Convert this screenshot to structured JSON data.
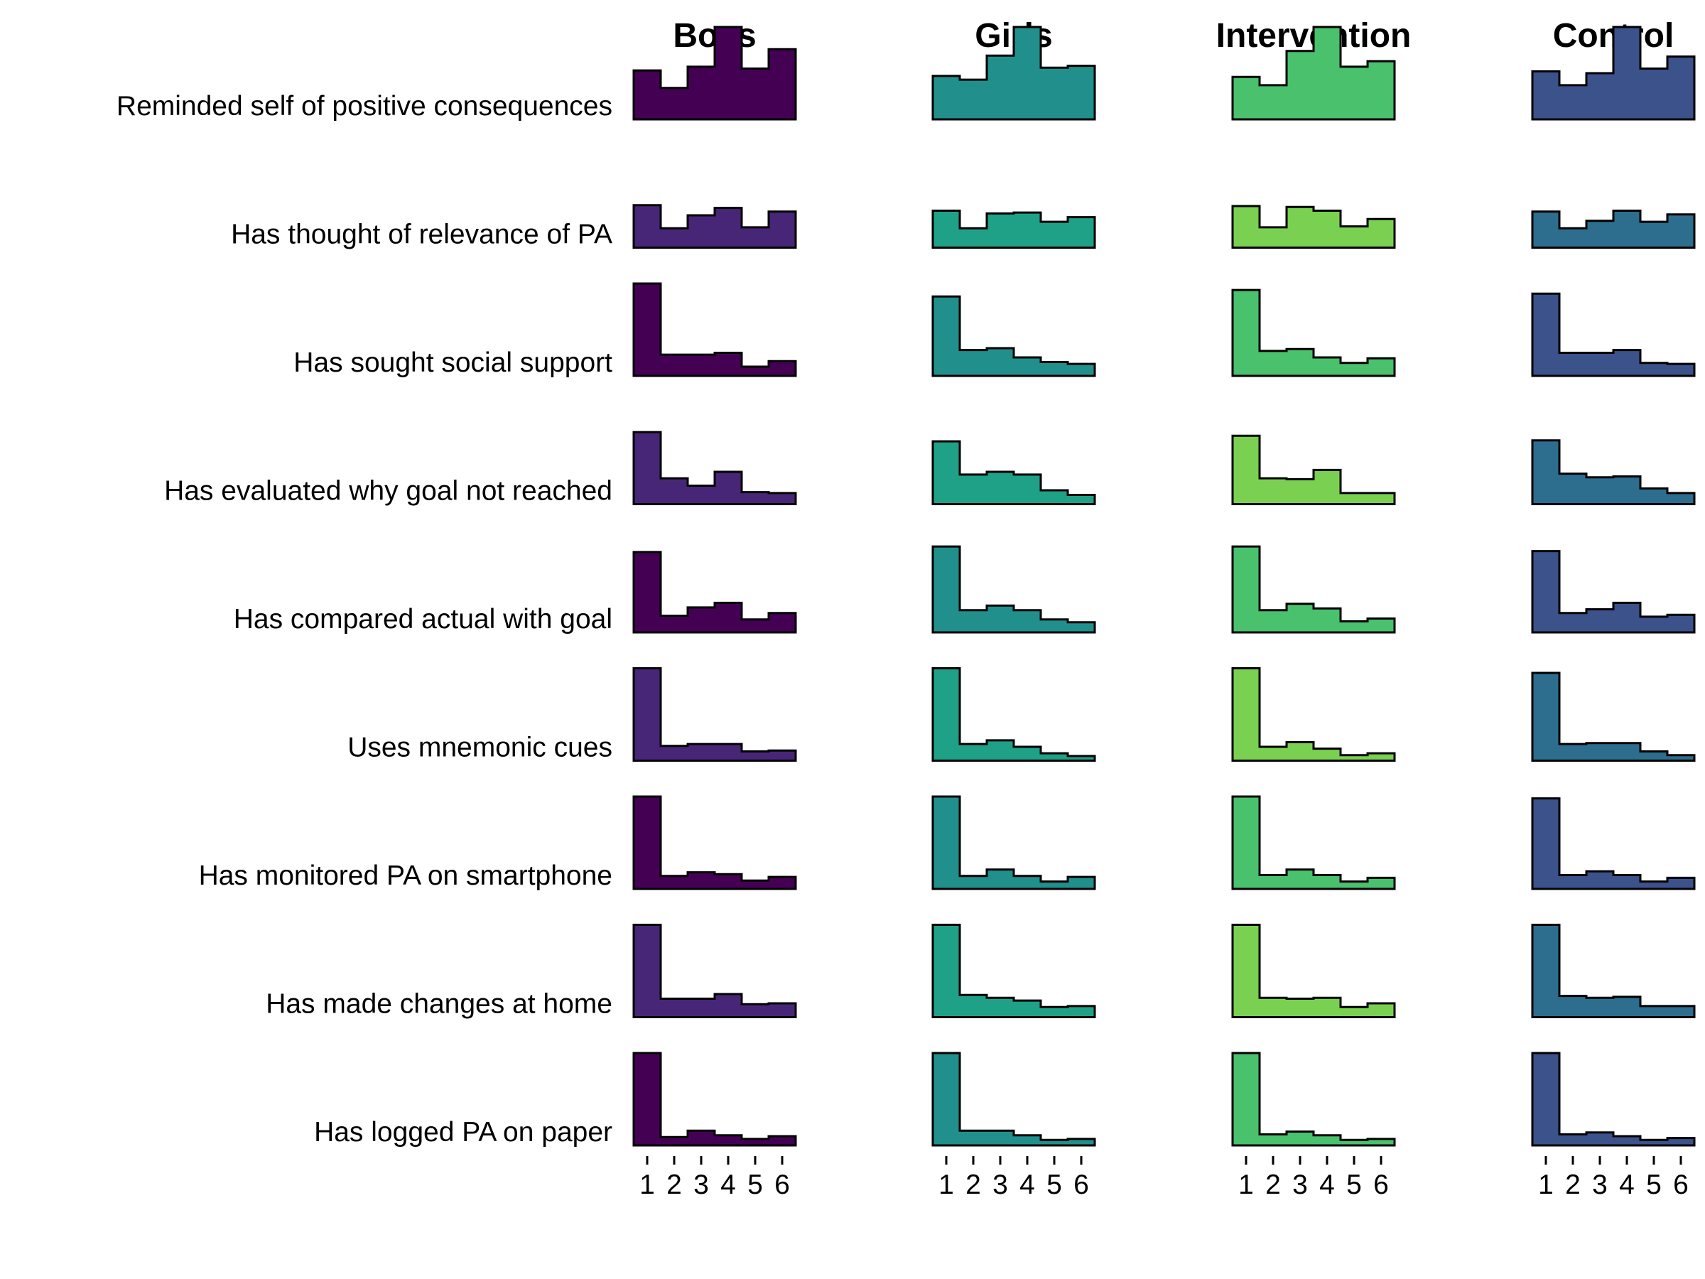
{
  "chart_data": {
    "type": "bar",
    "subtype": "ridgeline-histogram",
    "x_categories": [
      "1",
      "2",
      "3",
      "4",
      "5",
      "6"
    ],
    "columns": [
      {
        "title": "Boys",
        "color": "#440154"
      },
      {
        "title": "Girls",
        "color": "#21908C"
      },
      {
        "title": "Intervention",
        "color": "#4AC16D"
      },
      {
        "title": "Control",
        "color": "#3B528B"
      }
    ],
    "row_colors": [
      [
        "#440154",
        "#21908C",
        "#4AC16D",
        "#3B528B"
      ],
      [
        "#482677",
        "#1FA187",
        "#7AD151",
        "#2D6E8E"
      ],
      [
        "#440154",
        "#21908C",
        "#4AC16D",
        "#3B528B"
      ],
      [
        "#482677",
        "#1FA187",
        "#7AD151",
        "#2D6E8E"
      ],
      [
        "#440154",
        "#21908C",
        "#4AC16D",
        "#3B528B"
      ],
      [
        "#482677",
        "#1FA187",
        "#7AD151",
        "#2D6E8E"
      ],
      [
        "#440154",
        "#21908C",
        "#4AC16D",
        "#3B528B"
      ],
      [
        "#482677",
        "#1FA187",
        "#7AD151",
        "#2D6E8E"
      ],
      [
        "#440154",
        "#21908C",
        "#4AC16D",
        "#3B528B"
      ]
    ],
    "rows": [
      {
        "label": "Reminded self of positive consequences",
        "values": [
          [
            0.53,
            0.34,
            0.57,
            1.0,
            0.55,
            0.76
          ],
          [
            0.47,
            0.43,
            0.69,
            1.0,
            0.56,
            0.58
          ],
          [
            0.46,
            0.37,
            0.74,
            1.0,
            0.57,
            0.63
          ],
          [
            0.52,
            0.37,
            0.5,
            1.0,
            0.55,
            0.68
          ]
        ]
      },
      {
        "label": "Has thought of relevance of PA",
        "values": [
          [
            0.46,
            0.21,
            0.35,
            0.43,
            0.22,
            0.39
          ],
          [
            0.4,
            0.21,
            0.37,
            0.38,
            0.28,
            0.33
          ],
          [
            0.45,
            0.22,
            0.44,
            0.4,
            0.23,
            0.31
          ],
          [
            0.39,
            0.21,
            0.29,
            0.4,
            0.28,
            0.36
          ]
        ]
      },
      {
        "label": "Has sought social support",
        "values": [
          [
            1.0,
            0.23,
            0.23,
            0.25,
            0.1,
            0.16
          ],
          [
            0.86,
            0.28,
            0.3,
            0.2,
            0.15,
            0.13
          ],
          [
            0.93,
            0.27,
            0.29,
            0.2,
            0.14,
            0.19
          ],
          [
            0.89,
            0.25,
            0.25,
            0.28,
            0.14,
            0.13
          ]
        ]
      },
      {
        "label": "Has evaluated why goal not reached",
        "values": [
          [
            0.78,
            0.28,
            0.2,
            0.35,
            0.13,
            0.12
          ],
          [
            0.68,
            0.32,
            0.35,
            0.32,
            0.15,
            0.1
          ],
          [
            0.74,
            0.28,
            0.27,
            0.37,
            0.12,
            0.12
          ],
          [
            0.69,
            0.33,
            0.29,
            0.3,
            0.17,
            0.12
          ]
        ]
      },
      {
        "label": "Has compared actual with goal",
        "values": [
          [
            0.87,
            0.18,
            0.27,
            0.32,
            0.14,
            0.21
          ],
          [
            0.93,
            0.24,
            0.29,
            0.24,
            0.14,
            0.11
          ],
          [
            0.93,
            0.24,
            0.31,
            0.26,
            0.12,
            0.15
          ],
          [
            0.88,
            0.21,
            0.25,
            0.32,
            0.17,
            0.19
          ]
        ]
      },
      {
        "label": "Uses mnemonic cues",
        "values": [
          [
            1.0,
            0.16,
            0.18,
            0.18,
            0.1,
            0.11
          ],
          [
            1.0,
            0.18,
            0.22,
            0.15,
            0.08,
            0.05
          ],
          [
            1.0,
            0.15,
            0.2,
            0.13,
            0.06,
            0.08
          ],
          [
            0.95,
            0.18,
            0.19,
            0.19,
            0.1,
            0.06
          ]
        ]
      },
      {
        "label": "Has monitored PA on smartphone",
        "values": [
          [
            1.0,
            0.14,
            0.18,
            0.16,
            0.09,
            0.13
          ],
          [
            1.0,
            0.14,
            0.21,
            0.14,
            0.08,
            0.13
          ],
          [
            1.0,
            0.15,
            0.21,
            0.15,
            0.08,
            0.12
          ],
          [
            0.98,
            0.15,
            0.19,
            0.15,
            0.08,
            0.12
          ]
        ]
      },
      {
        "label": "Has made changes at home",
        "values": [
          [
            1.0,
            0.2,
            0.2,
            0.25,
            0.14,
            0.15
          ],
          [
            1.0,
            0.24,
            0.21,
            0.18,
            0.11,
            0.12
          ],
          [
            1.0,
            0.21,
            0.2,
            0.21,
            0.11,
            0.15
          ],
          [
            1.0,
            0.23,
            0.21,
            0.22,
            0.12,
            0.12
          ]
        ]
      },
      {
        "label": "Has logged PA on paper",
        "values": [
          [
            1.0,
            0.09,
            0.16,
            0.11,
            0.07,
            0.1
          ],
          [
            1.0,
            0.16,
            0.16,
            0.11,
            0.06,
            0.07
          ],
          [
            1.0,
            0.12,
            0.15,
            0.11,
            0.06,
            0.07
          ],
          [
            1.0,
            0.12,
            0.14,
            0.1,
            0.06,
            0.08
          ]
        ]
      }
    ],
    "xlabel": "",
    "ylabel": ""
  }
}
